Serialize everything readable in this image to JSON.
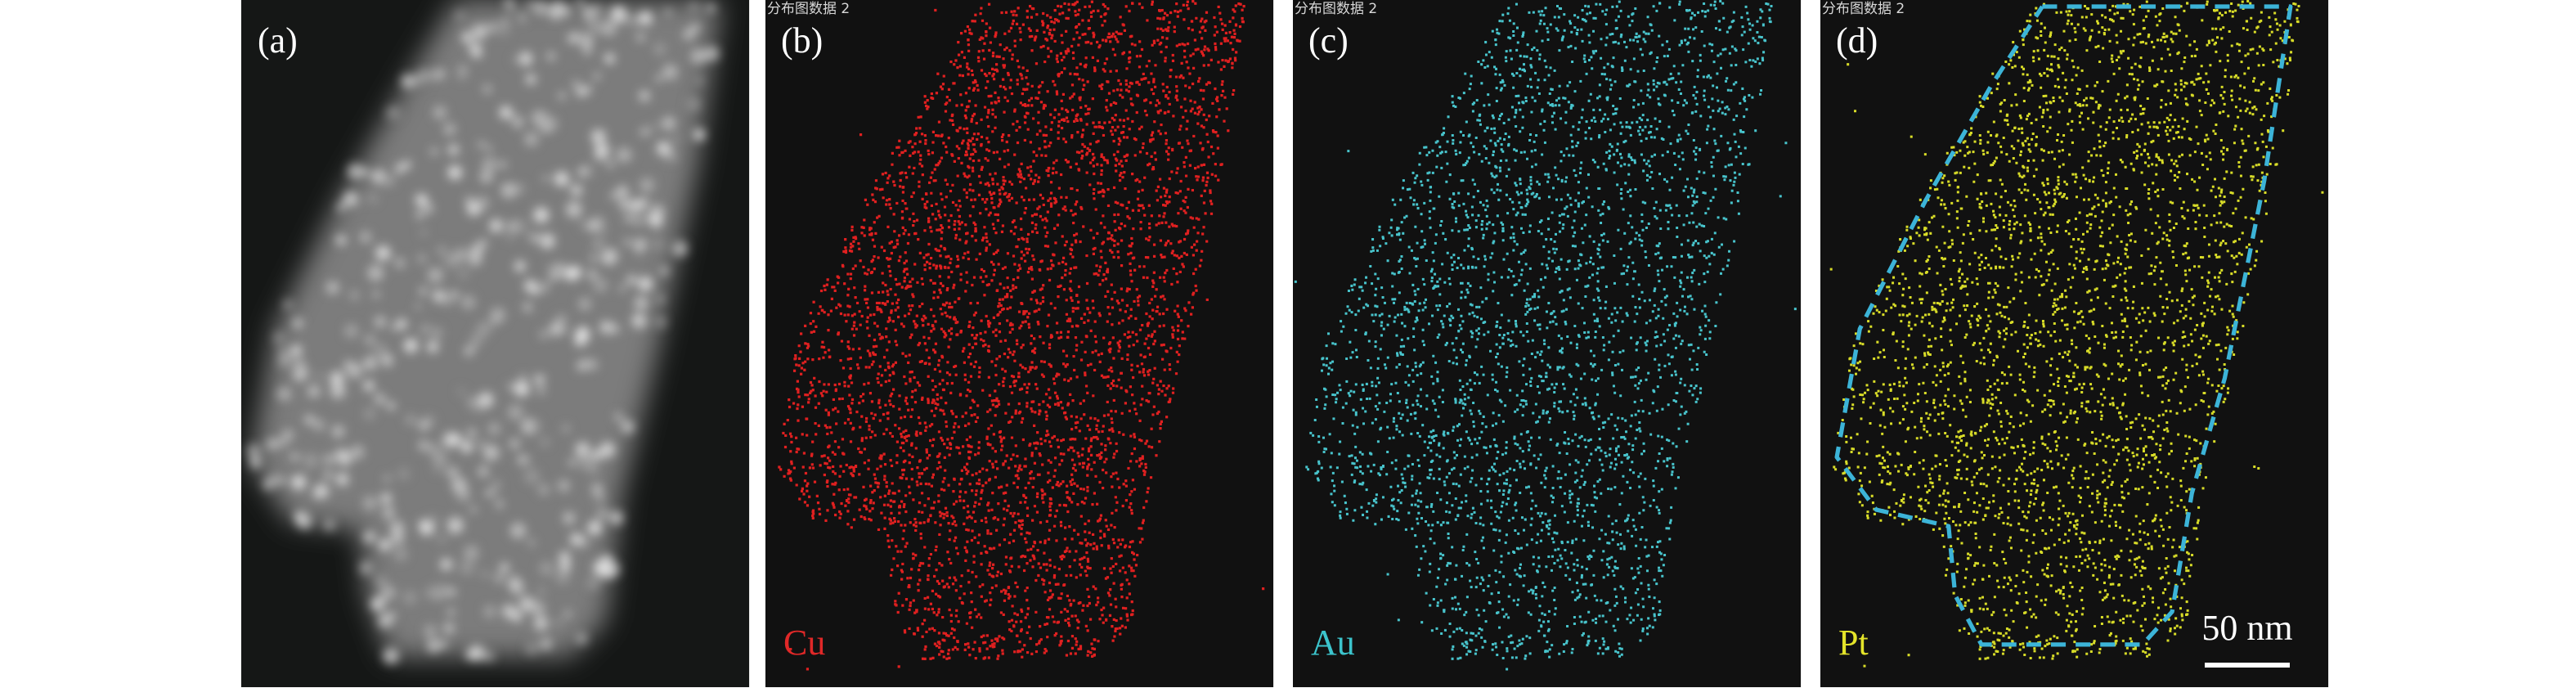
{
  "panels": [
    {
      "label": "(a)"
    },
    {
      "label": "(b)",
      "watermark": "分布图数据 2",
      "element": "Cu"
    },
    {
      "label": "(c)",
      "watermark": "分布图数据 2",
      "element": "Au"
    },
    {
      "label": "(d)",
      "watermark": "分布图数据 2",
      "element": "Pt"
    }
  ],
  "scale_bar": {
    "label": "50 nm"
  }
}
